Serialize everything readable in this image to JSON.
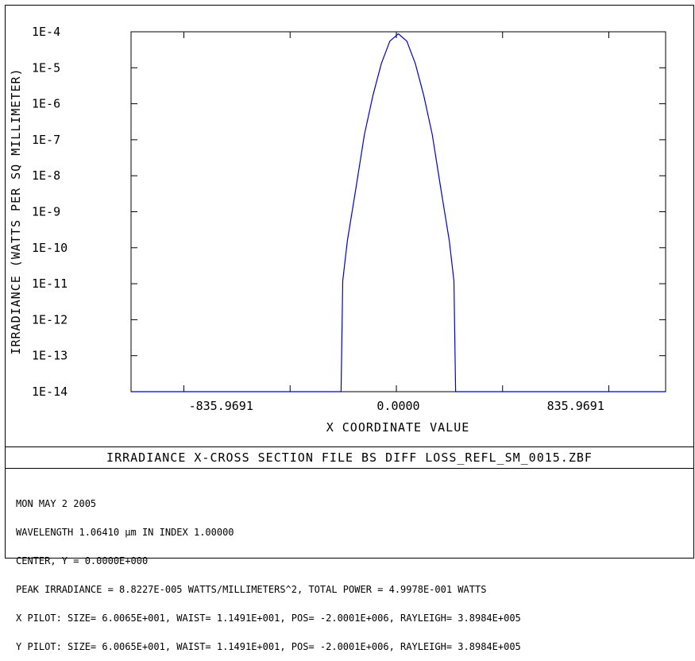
{
  "chart_data": {
    "type": "line",
    "title": "IRRADIANCE X-CROSS SECTION FILE BS DIFF LOSS_REFL_SM_0015.ZBF",
    "xlabel": "X COORDINATE VALUE",
    "ylabel": "IRRADIANCE (WATTS PER SQ MILLIMETER)",
    "yscale": "log",
    "ylim": [
      1e-14,
      0.0001
    ],
    "xlim": [
      -1260,
      1260
    ],
    "x_tick_labels": [
      "-835.9691",
      "0.0000",
      "835.9691"
    ],
    "x_tick_values": [
      -835.9691,
      0,
      835.9691
    ],
    "y_tick_labels": [
      "1E-4",
      "1E-5",
      "1E-6",
      "1E-7",
      "1E-8",
      "1E-9",
      "1E-10",
      "1E-11",
      "1E-12",
      "1E-13",
      "1E-14"
    ],
    "y_tick_values": [
      0.0001,
      1e-05,
      1e-06,
      1e-07,
      1e-08,
      1e-09,
      1e-10,
      1e-11,
      1e-12,
      1e-13,
      1e-14
    ],
    "series": [
      {
        "color": "#0000cc",
        "x": [
          -1260,
          -270,
          -262,
          -240,
          -200,
          -160,
          -120,
          -80,
          -40,
          0,
          40,
          80,
          120,
          160,
          200,
          240,
          262,
          270,
          1260
        ],
        "y": [
          1e-14,
          1e-14,
          1.2e-11,
          1.6e-10,
          4.5e-09,
          1.4e-07,
          1.7e-06,
          1.3e-05,
          5.5e-05,
          8.8227e-05,
          5.5e-05,
          1.3e-05,
          1.7e-06,
          1.4e-07,
          4.5e-09,
          1.6e-10,
          1.2e-11,
          1e-14,
          1e-14
        ]
      }
    ],
    "grid": false,
    "legend": "none"
  },
  "info_lines": [
    "MON MAY 2 2005",
    "WAVELENGTH 1.06410 µm IN INDEX 1.00000",
    "CENTER, Y = 0.0000E+000",
    "PEAK IRRADIANCE = 8.8227E-005 WATTS/MILLIMETERS^2, TOTAL POWER = 4.9978E-001 WATTS",
    "X PILOT: SIZE= 6.0065E+001, WAIST= 1.1491E+001, POS= -2.0001E+006, RAYLEIGH= 3.8984E+005",
    "Y PILOT: SIZE= 6.0065E+001, WAIST= 1.1491E+001, POS= -2.0001E+006, RAYLEIGH= 3.8984E+005"
  ]
}
